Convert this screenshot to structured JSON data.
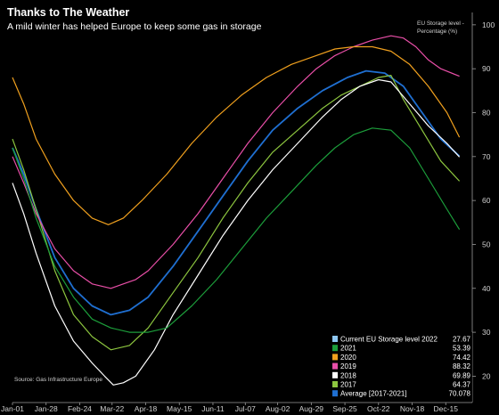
{
  "chart_data": {
    "type": "line",
    "title": "Thanks to The Weather",
    "subtitle": "A mild winter has helped Europe to keep some gas in storage",
    "ylabel": "EU Storage level -\nPercentage (%)",
    "source": "Source: Gas Infrastructure Europe",
    "ylim": [
      14,
      102
    ],
    "yticks": [
      20,
      30,
      40,
      50,
      60,
      70,
      80,
      90,
      100
    ],
    "xlim": [
      1,
      366
    ],
    "xticks": [
      {
        "day": 1,
        "label": "Jan-01"
      },
      {
        "day": 28,
        "label": "Jan-28"
      },
      {
        "day": 55,
        "label": "Feb-24"
      },
      {
        "day": 81,
        "label": "Mar-22"
      },
      {
        "day": 108,
        "label": "Apr-18"
      },
      {
        "day": 135,
        "label": "May-15"
      },
      {
        "day": 162,
        "label": "Jun-11"
      },
      {
        "day": 188,
        "label": "Jul-07"
      },
      {
        "day": 214,
        "label": "Aug-02"
      },
      {
        "day": 241,
        "label": "Aug-29"
      },
      {
        "day": 268,
        "label": "Sep-25"
      },
      {
        "day": 295,
        "label": "Oct-22"
      },
      {
        "day": 322,
        "label": "Nov-18"
      },
      {
        "day": 349,
        "label": "Dec-15"
      }
    ],
    "grid": false,
    "legend_position": "bottom-right",
    "series": [
      {
        "name": "Average  [2017-2021]",
        "label_in_legend": "Average  [2017-2021]",
        "value_text": "70.078",
        "color": "#1f6fd1",
        "points": [
          [
            1,
            72
          ],
          [
            10,
            66
          ],
          [
            20,
            58
          ],
          [
            35,
            47
          ],
          [
            50,
            40
          ],
          [
            65,
            36
          ],
          [
            80,
            34
          ],
          [
            95,
            35
          ],
          [
            110,
            38
          ],
          [
            130,
            45
          ],
          [
            150,
            53
          ],
          [
            170,
            61
          ],
          [
            190,
            69
          ],
          [
            210,
            76
          ],
          [
            230,
            81
          ],
          [
            250,
            85
          ],
          [
            270,
            88
          ],
          [
            285,
            89.5
          ],
          [
            300,
            89
          ],
          [
            315,
            86
          ],
          [
            330,
            80
          ],
          [
            345,
            74
          ],
          [
            360,
            70.1
          ]
        ]
      },
      {
        "name": "2017",
        "label_in_legend": "2017",
        "value_text": "64.37",
        "color": "#8dc63f",
        "points": [
          [
            1,
            74
          ],
          [
            10,
            67
          ],
          [
            20,
            58
          ],
          [
            35,
            44
          ],
          [
            50,
            34
          ],
          [
            65,
            29
          ],
          [
            80,
            26
          ],
          [
            95,
            27
          ],
          [
            110,
            31
          ],
          [
            130,
            39
          ],
          [
            150,
            47
          ],
          [
            170,
            56
          ],
          [
            190,
            64
          ],
          [
            210,
            71
          ],
          [
            230,
            76
          ],
          [
            250,
            81
          ],
          [
            265,
            84
          ],
          [
            280,
            86
          ],
          [
            295,
            88
          ],
          [
            305,
            88.5
          ],
          [
            315,
            83
          ],
          [
            330,
            76
          ],
          [
            345,
            69
          ],
          [
            360,
            64.4
          ]
        ]
      },
      {
        "name": "2018",
        "label_in_legend": "2018",
        "value_text": "69.89",
        "color": "#ffffff",
        "points": [
          [
            1,
            64
          ],
          [
            10,
            57
          ],
          [
            20,
            48
          ],
          [
            35,
            36
          ],
          [
            50,
            28
          ],
          [
            65,
            23
          ],
          [
            75,
            20
          ],
          [
            82,
            18
          ],
          [
            90,
            18.5
          ],
          [
            100,
            20
          ],
          [
            115,
            26
          ],
          [
            130,
            34
          ],
          [
            150,
            43
          ],
          [
            170,
            52
          ],
          [
            190,
            60
          ],
          [
            210,
            67
          ],
          [
            230,
            73
          ],
          [
            250,
            79
          ],
          [
            265,
            83
          ],
          [
            280,
            86
          ],
          [
            295,
            87.5
          ],
          [
            305,
            87
          ],
          [
            320,
            82
          ],
          [
            335,
            77
          ],
          [
            350,
            73
          ],
          [
            360,
            69.9
          ]
        ]
      },
      {
        "name": "2019",
        "label_in_legend": "2019",
        "value_text": "88.32",
        "color": "#e94fa8",
        "points": [
          [
            1,
            70
          ],
          [
            10,
            64
          ],
          [
            20,
            57
          ],
          [
            35,
            49
          ],
          [
            50,
            44
          ],
          [
            65,
            41
          ],
          [
            80,
            40
          ],
          [
            90,
            41
          ],
          [
            100,
            42
          ],
          [
            110,
            44
          ],
          [
            130,
            50
          ],
          [
            150,
            57
          ],
          [
            170,
            65
          ],
          [
            190,
            73
          ],
          [
            210,
            80
          ],
          [
            230,
            86
          ],
          [
            245,
            90
          ],
          [
            260,
            93
          ],
          [
            275,
            95
          ],
          [
            290,
            96.5
          ],
          [
            305,
            97.5
          ],
          [
            315,
            97
          ],
          [
            325,
            95
          ],
          [
            335,
            92
          ],
          [
            345,
            90
          ],
          [
            360,
            88.3
          ]
        ]
      },
      {
        "name": "2020",
        "label_in_legend": "2020",
        "value_text": "74.42",
        "color": "#f0a01e",
        "points": [
          [
            1,
            88
          ],
          [
            10,
            82
          ],
          [
            20,
            74
          ],
          [
            35,
            66
          ],
          [
            50,
            60
          ],
          [
            65,
            56
          ],
          [
            78,
            54.5
          ],
          [
            90,
            56
          ],
          [
            105,
            60
          ],
          [
            125,
            66
          ],
          [
            145,
            73
          ],
          [
            165,
            79
          ],
          [
            185,
            84
          ],
          [
            205,
            88
          ],
          [
            225,
            91
          ],
          [
            245,
            93
          ],
          [
            260,
            94.5
          ],
          [
            275,
            95
          ],
          [
            290,
            95
          ],
          [
            305,
            94
          ],
          [
            320,
            91
          ],
          [
            335,
            86
          ],
          [
            350,
            80
          ],
          [
            360,
            74.4
          ]
        ]
      },
      {
        "name": "2021",
        "label_in_legend": "2021",
        "value_text": "53.39",
        "color": "#1c9e3b",
        "points": [
          [
            1,
            72
          ],
          [
            10,
            65
          ],
          [
            20,
            56
          ],
          [
            35,
            45
          ],
          [
            50,
            38
          ],
          [
            65,
            33
          ],
          [
            80,
            31
          ],
          [
            95,
            30
          ],
          [
            110,
            30
          ],
          [
            125,
            31
          ],
          [
            145,
            36
          ],
          [
            165,
            42
          ],
          [
            185,
            49
          ],
          [
            205,
            56
          ],
          [
            225,
            62
          ],
          [
            245,
            68
          ],
          [
            260,
            72
          ],
          [
            275,
            75
          ],
          [
            290,
            76.5
          ],
          [
            305,
            76
          ],
          [
            320,
            72
          ],
          [
            335,
            65
          ],
          [
            350,
            58
          ],
          [
            360,
            53.4
          ]
        ]
      },
      {
        "name": "Current EU Storage level",
        "label_in_legend": "Current EU Storage level  2022",
        "value_text": "27.67",
        "color": "#8ec7f2",
        "points": []
      }
    ]
  }
}
